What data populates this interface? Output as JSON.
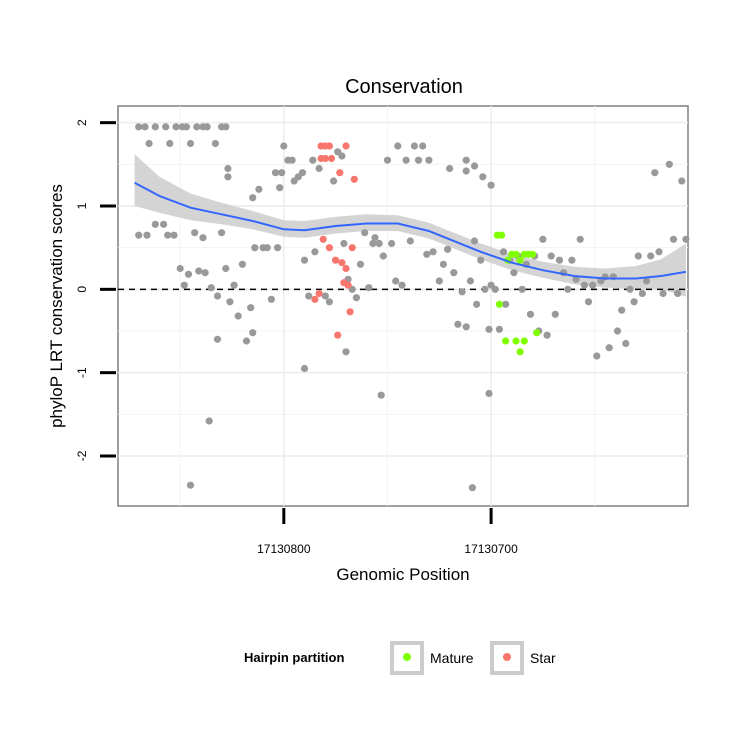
{
  "chart_data": {
    "type": "scatter",
    "title": "Conservation",
    "xlabel": "Genomic Position",
    "ylabel": "phyloP LRT conservation scores",
    "x_reversed": true,
    "xlim": [
      17130880,
      17130605
    ],
    "ylim": [
      -2.6,
      2.2
    ],
    "x_ticks": [
      17130800,
      17130700
    ],
    "x_tick_labels": [
      "17130800",
      "17130700"
    ],
    "y_ticks": [
      -2,
      -1,
      0,
      1,
      2
    ],
    "y_tick_labels": [
      "-2",
      "-1",
      "0",
      "1",
      "2"
    ],
    "reference_line": {
      "y": 0,
      "style": "dashed",
      "color": "#000000"
    },
    "grid": true,
    "legend": {
      "title": "Hairpin partition",
      "position": "bottom",
      "entries": [
        {
          "label": "Mature",
          "color": "#7fff00"
        },
        {
          "label": "Star",
          "color": "#f8766d"
        }
      ]
    },
    "series": [
      {
        "color": "#999999",
        "points": [
          [
            17130870,
            1.95
          ],
          [
            17130867,
            1.95
          ],
          [
            17130865,
            1.75
          ],
          [
            17130862,
            1.95
          ],
          [
            17130857,
            1.95
          ],
          [
            17130855,
            1.75
          ],
          [
            17130852,
            1.95
          ],
          [
            17130849,
            1.95
          ],
          [
            17130847,
            1.95
          ],
          [
            17130845,
            1.75
          ],
          [
            17130842,
            1.95
          ],
          [
            17130839,
            1.95
          ],
          [
            17130837,
            1.95
          ],
          [
            17130833,
            1.75
          ],
          [
            17130830,
            1.95
          ],
          [
            17130828,
            1.95
          ],
          [
            17130870,
            0.65
          ],
          [
            17130866,
            0.65
          ],
          [
            17130862,
            0.78
          ],
          [
            17130858,
            0.78
          ],
          [
            17130856,
            0.65
          ],
          [
            17130853,
            0.65
          ],
          [
            17130850,
            0.25
          ],
          [
            17130848,
            0.05
          ],
          [
            17130846,
            0.18
          ],
          [
            17130843,
            0.68
          ],
          [
            17130841,
            0.22
          ],
          [
            17130838,
            0.2
          ],
          [
            17130835,
            0.02
          ],
          [
            17130832,
            -0.08
          ],
          [
            17130830,
            0.68
          ],
          [
            17130828,
            0.25
          ],
          [
            17130826,
            -0.15
          ],
          [
            17130824,
            0.05
          ],
          [
            17130822,
            -0.32
          ],
          [
            17130820,
            0.3
          ],
          [
            17130818,
            -0.62
          ],
          [
            17130816,
            -0.22
          ],
          [
            17130815,
            1.1
          ],
          [
            17130814,
            0.5
          ],
          [
            17130812,
            1.2
          ],
          [
            17130810,
            0.5
          ],
          [
            17130808,
            0.5
          ],
          [
            17130806,
            -0.12
          ],
          [
            17130804,
            1.4
          ],
          [
            17130803,
            0.5
          ],
          [
            17130801,
            1.4
          ],
          [
            17130800,
            1.72
          ],
          [
            17130798,
            1.55
          ],
          [
            17130796,
            1.55
          ],
          [
            17130795,
            1.3
          ],
          [
            17130793,
            1.35
          ],
          [
            17130791,
            1.4
          ],
          [
            17130790,
            0.35
          ],
          [
            17130788,
            -0.08
          ],
          [
            17130786,
            1.55
          ],
          [
            17130785,
            0.45
          ],
          [
            17130783,
            1.45
          ],
          [
            17130780,
            -0.08
          ],
          [
            17130778,
            -0.15
          ],
          [
            17130776,
            1.3
          ],
          [
            17130774,
            1.65
          ],
          [
            17130772,
            1.6
          ],
          [
            17130771,
            0.55
          ],
          [
            17130769,
            0.12
          ],
          [
            17130767,
            0.0
          ],
          [
            17130765,
            -0.1
          ],
          [
            17130763,
            0.3
          ],
          [
            17130761,
            0.68
          ],
          [
            17130759,
            0.02
          ],
          [
            17130757,
            0.55
          ],
          [
            17130756,
            0.62
          ],
          [
            17130754,
            0.55
          ],
          [
            17130752,
            0.4
          ],
          [
            17130750,
            1.55
          ],
          [
            17130748,
            0.55
          ],
          [
            17130746,
            0.1
          ],
          [
            17130745,
            1.72
          ],
          [
            17130743,
            0.05
          ],
          [
            17130741,
            1.55
          ],
          [
            17130739,
            0.58
          ],
          [
            17130737,
            1.72
          ],
          [
            17130735,
            1.55
          ],
          [
            17130733,
            1.72
          ],
          [
            17130731,
            0.42
          ],
          [
            17130730,
            1.55
          ],
          [
            17130728,
            0.45
          ],
          [
            17130725,
            0.1
          ],
          [
            17130723,
            0.3
          ],
          [
            17130721,
            0.48
          ],
          [
            17130720,
            1.45
          ],
          [
            17130718,
            0.2
          ],
          [
            17130716,
            -0.42
          ],
          [
            17130714,
            -0.03
          ],
          [
            17130712,
            -0.45
          ],
          [
            17130710,
            0.1
          ],
          [
            17130708,
            0.58
          ],
          [
            17130707,
            -0.18
          ],
          [
            17130705,
            0.35
          ],
          [
            17130703,
            0.0
          ],
          [
            17130701,
            -0.48
          ],
          [
            17130700,
            0.05
          ],
          [
            17130698,
            0.0
          ],
          [
            17130696,
            -0.48
          ],
          [
            17130694,
            0.45
          ],
          [
            17130693,
            -0.18
          ],
          [
            17130691,
            0.35
          ],
          [
            17130689,
            0.2
          ],
          [
            17130687,
            0.4
          ],
          [
            17130685,
            0.0
          ],
          [
            17130683,
            0.3
          ],
          [
            17130681,
            -0.3
          ],
          [
            17130679,
            0.4
          ],
          [
            17130677,
            -0.5
          ],
          [
            17130675,
            0.6
          ],
          [
            17130673,
            -0.55
          ],
          [
            17130671,
            0.4
          ],
          [
            17130669,
            -0.3
          ],
          [
            17130667,
            0.35
          ],
          [
            17130665,
            0.2
          ],
          [
            17130663,
            0.0
          ],
          [
            17130661,
            0.35
          ],
          [
            17130659,
            0.12
          ],
          [
            17130657,
            0.6
          ],
          [
            17130655,
            0.05
          ],
          [
            17130653,
            -0.15
          ],
          [
            17130651,
            0.05
          ],
          [
            17130649,
            -0.8
          ],
          [
            17130647,
            0.1
          ],
          [
            17130645,
            0.15
          ],
          [
            17130643,
            -0.7
          ],
          [
            17130641,
            0.15
          ],
          [
            17130639,
            -0.5
          ],
          [
            17130637,
            -0.25
          ],
          [
            17130635,
            -0.65
          ],
          [
            17130633,
            0.0
          ],
          [
            17130631,
            -0.15
          ],
          [
            17130629,
            0.4
          ],
          [
            17130627,
            -0.05
          ],
          [
            17130625,
            0.1
          ],
          [
            17130623,
            0.4
          ],
          [
            17130621,
            1.4
          ],
          [
            17130619,
            0.45
          ],
          [
            17130617,
            -0.05
          ],
          [
            17130614,
            1.5
          ],
          [
            17130612,
            0.6
          ],
          [
            17130610,
            -0.05
          ],
          [
            17130608,
            1.3
          ],
          [
            17130606,
            0.6
          ],
          [
            17130790,
            -0.95
          ],
          [
            17130770,
            -0.75
          ],
          [
            17130753,
            -1.27
          ],
          [
            17130815,
            -0.52
          ],
          [
            17130832,
            -0.6
          ],
          [
            17130836,
            -1.58
          ],
          [
            17130701,
            -1.25
          ],
          [
            17130845,
            -2.35
          ],
          [
            17130709,
            -2.38
          ],
          [
            17130827,
            1.45
          ],
          [
            17130827,
            1.35
          ],
          [
            17130802,
            1.22
          ],
          [
            17130712,
            1.55
          ],
          [
            17130712,
            1.42
          ],
          [
            17130708,
            1.48
          ],
          [
            17130704,
            1.35
          ],
          [
            17130700,
            1.25
          ],
          [
            17130839,
            0.62
          ]
        ]
      },
      {
        "name": "Star",
        "color": "#f8766d",
        "points": [
          [
            17130782,
            1.72
          ],
          [
            17130780,
            1.72
          ],
          [
            17130778,
            1.72
          ],
          [
            17130782,
            1.57
          ],
          [
            17130780,
            1.57
          ],
          [
            17130777,
            1.57
          ],
          [
            17130770,
            1.72
          ],
          [
            17130773,
            1.4
          ],
          [
            17130766,
            1.32
          ],
          [
            17130781,
            0.6
          ],
          [
            17130778,
            0.5
          ],
          [
            17130775,
            0.35
          ],
          [
            17130772,
            0.32
          ],
          [
            17130767,
            0.5
          ],
          [
            17130770,
            0.25
          ],
          [
            17130771,
            0.08
          ],
          [
            17130769,
            0.05
          ],
          [
            17130783,
            -0.05
          ],
          [
            17130785,
            -0.12
          ],
          [
            17130774,
            -0.55
          ],
          [
            17130768,
            -0.27
          ]
        ]
      },
      {
        "name": "Mature",
        "color": "#7fff00",
        "points": [
          [
            17130697,
            0.65
          ],
          [
            17130695,
            0.65
          ],
          [
            17130692,
            0.35
          ],
          [
            17130690,
            0.42
          ],
          [
            17130688,
            0.42
          ],
          [
            17130686,
            0.35
          ],
          [
            17130684,
            0.42
          ],
          [
            17130682,
            0.42
          ],
          [
            17130680,
            0.42
          ],
          [
            17130696,
            -0.18
          ],
          [
            17130693,
            -0.62
          ],
          [
            17130688,
            -0.62
          ],
          [
            17130686,
            -0.75
          ],
          [
            17130684,
            -0.62
          ],
          [
            17130678,
            -0.52
          ]
        ]
      }
    ],
    "smooth": {
      "color": "#3366ff",
      "band_color": "#cccccc",
      "x": [
        17130872,
        17130860,
        17130845,
        17130830,
        17130815,
        17130800,
        17130790,
        17130775,
        17130760,
        17130745,
        17130730,
        17130720,
        17130705,
        17130690,
        17130675,
        17130660,
        17130645,
        17130630,
        17130618,
        17130606
      ],
      "y": [
        1.28,
        1.12,
        0.98,
        0.9,
        0.82,
        0.72,
        0.71,
        0.76,
        0.79,
        0.79,
        0.7,
        0.6,
        0.45,
        0.32,
        0.23,
        0.16,
        0.13,
        0.13,
        0.16,
        0.21
      ],
      "lower": [
        1.0,
        0.92,
        0.83,
        0.78,
        0.72,
        0.63,
        0.62,
        0.67,
        0.7,
        0.7,
        0.61,
        0.51,
        0.36,
        0.23,
        0.14,
        0.06,
        0.02,
        0.0,
        0.0,
        -0.09
      ],
      "upper": [
        1.62,
        1.35,
        1.15,
        1.04,
        0.94,
        0.83,
        0.82,
        0.87,
        0.9,
        0.89,
        0.8,
        0.7,
        0.55,
        0.42,
        0.33,
        0.27,
        0.25,
        0.28,
        0.36,
        0.55
      ]
    }
  }
}
